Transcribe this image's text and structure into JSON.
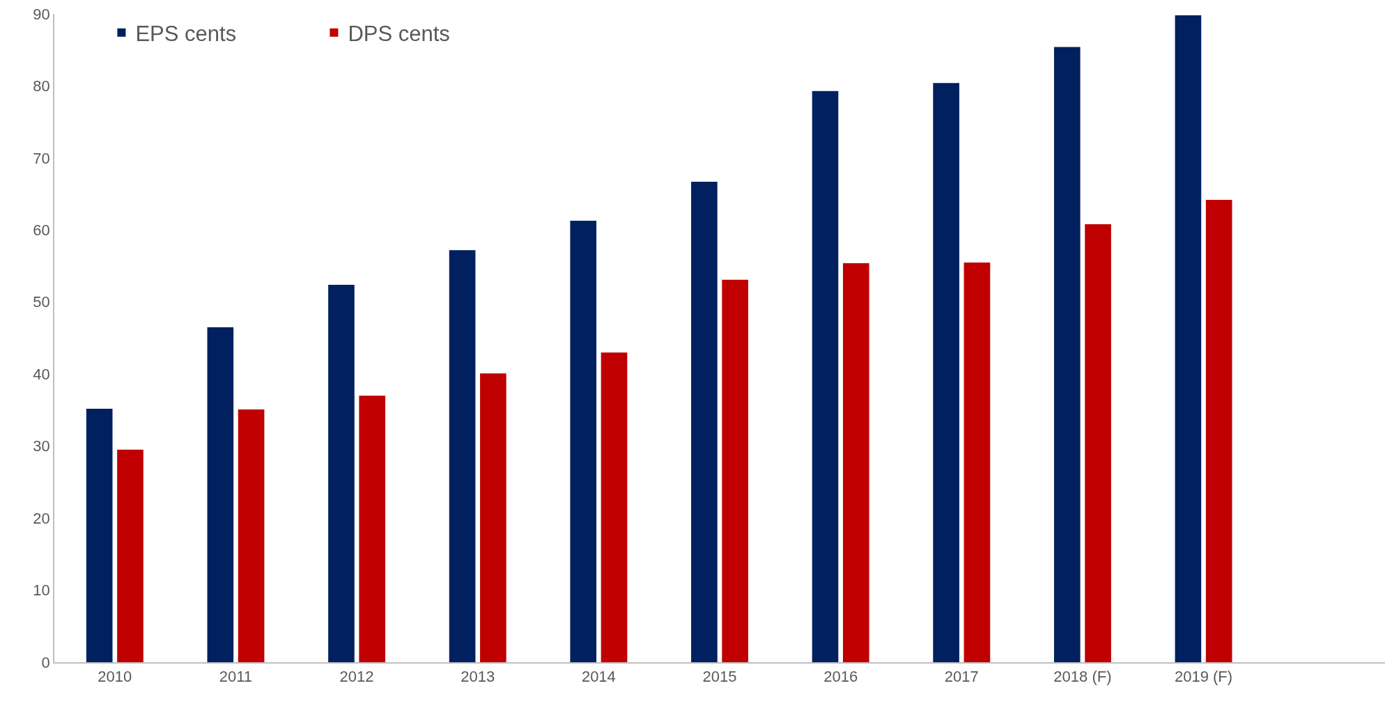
{
  "chart_data": {
    "type": "bar",
    "categories": [
      "2010",
      "2011",
      "2012",
      "2013",
      "2014",
      "2015",
      "2016",
      "2017",
      "2018 (F)",
      "2019 (F)",
      null
    ],
    "series": [
      {
        "name": "EPS cents",
        "color": "#002060",
        "values": [
          35.2,
          46.5,
          52.4,
          57.2,
          61.3,
          66.7,
          79.3,
          80.4,
          85.4,
          89.8,
          null
        ]
      },
      {
        "name": "DPS cents",
        "color": "#c00000",
        "values": [
          29.5,
          35.1,
          37.0,
          40.1,
          43.0,
          53.1,
          55.4,
          55.5,
          60.8,
          64.2,
          null
        ]
      }
    ],
    "ylim": [
      0,
      90
    ],
    "yticks": [
      0,
      10,
      20,
      30,
      40,
      50,
      60,
      70,
      80,
      90
    ],
    "grid": false,
    "legend": "top left"
  }
}
